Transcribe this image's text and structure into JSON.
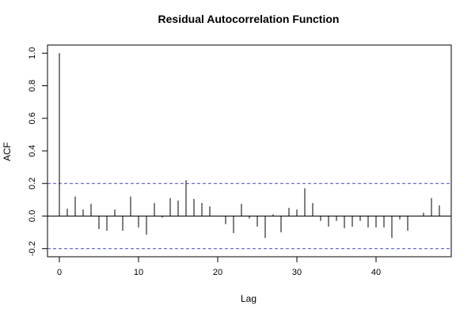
{
  "chart_data": {
    "type": "bar",
    "title": "Residual Autocorrelation Function",
    "xlabel": "Lag",
    "ylabel": "ACF",
    "xlim": [
      -1.5,
      49.5
    ],
    "ylim": [
      -0.25,
      1.05
    ],
    "x_ticks": [
      0,
      10,
      20,
      30,
      40
    ],
    "y_ticks": [
      -0.2,
      0.0,
      0.2,
      0.4,
      0.6,
      0.8,
      1.0
    ],
    "y_tick_labels": [
      "-0.2",
      "0.0",
      "0.2",
      "0.4",
      "0.6",
      "0.8",
      "1.0"
    ],
    "confidence_bounds": [
      0.2,
      -0.2
    ],
    "confidence_color": "#4444cc",
    "lags": [
      0,
      1,
      2,
      3,
      4,
      5,
      6,
      7,
      8,
      9,
      10,
      11,
      12,
      13,
      14,
      15,
      16,
      17,
      18,
      19,
      20,
      21,
      22,
      23,
      24,
      25,
      26,
      27,
      28,
      29,
      30,
      31,
      32,
      33,
      34,
      35,
      36,
      37,
      38,
      39,
      40,
      41,
      42,
      43,
      44,
      45,
      46,
      47,
      48
    ],
    "values": [
      1.0,
      0.045,
      0.12,
      0.04,
      0.075,
      -0.08,
      -0.09,
      0.04,
      -0.09,
      0.12,
      -0.07,
      -0.115,
      0.08,
      -0.01,
      0.11,
      0.095,
      0.22,
      0.105,
      0.08,
      0.06,
      0.0,
      -0.05,
      -0.105,
      0.075,
      -0.015,
      -0.065,
      -0.135,
      0.01,
      -0.1,
      0.05,
      0.04,
      0.17,
      0.08,
      -0.03,
      -0.065,
      -0.03,
      -0.075,
      -0.065,
      -0.03,
      -0.07,
      -0.07,
      -0.07,
      -0.135,
      -0.02,
      -0.09,
      0.0,
      0.02,
      0.11,
      0.065
    ],
    "grid": false,
    "legend": "none"
  }
}
